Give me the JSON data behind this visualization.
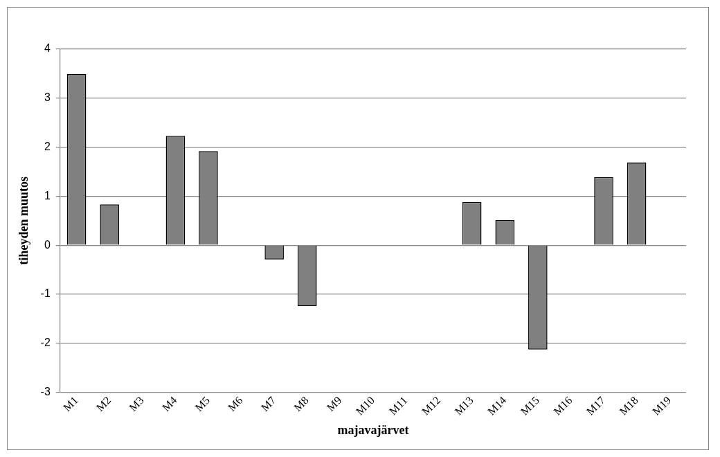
{
  "chart_data": {
    "type": "bar",
    "xlabel": "majavajärvet",
    "ylabel": "tiheyden muutos",
    "categories": [
      "M1",
      "M2",
      "M3",
      "M4",
      "M5",
      "M6",
      "M7",
      "M8",
      "M9",
      "M10",
      "M11",
      "M12",
      "M13",
      "M14",
      "M15",
      "M16",
      "M17",
      "M18",
      "M19"
    ],
    "values": [
      3.49,
      0.83,
      null,
      2.23,
      1.92,
      null,
      -0.29,
      -1.24,
      null,
      null,
      null,
      null,
      0.88,
      0.51,
      -2.13,
      null,
      1.39,
      1.69,
      null
    ],
    "color": "#808080",
    "ylim": [
      -3,
      4
    ],
    "yticks": [
      -3,
      -2,
      -1,
      0,
      1,
      2,
      3,
      4
    ],
    "grid": "y",
    "legend": false
  }
}
